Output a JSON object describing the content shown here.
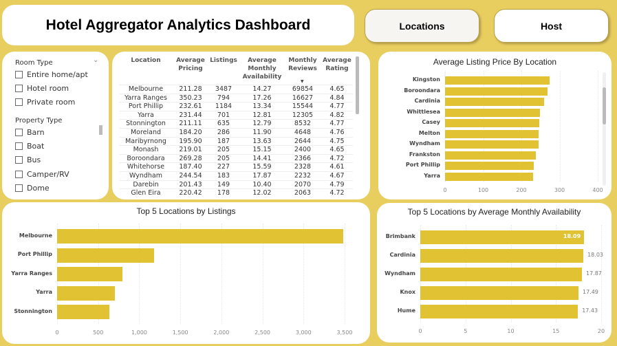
{
  "header": {
    "title": "Hotel Aggregator Analytics Dashboard",
    "nav": [
      "Locations",
      "Host"
    ]
  },
  "slicer": {
    "room_type_label": "Room Type",
    "room_types": [
      "Entire home/apt",
      "Hotel room",
      "Private room"
    ],
    "property_type_label": "Property Type",
    "property_types": [
      "Barn",
      "Boat",
      "Bus",
      "Camper/RV",
      "Dome"
    ]
  },
  "table": {
    "columns": [
      "Location",
      "Average Pricing",
      "Listings",
      "Average Monthly Availability",
      "Monthly Reviews",
      "Average Rating"
    ],
    "sort_column": "Monthly Reviews",
    "sort": "descending",
    "rows": [
      [
        "Melbourne",
        "211.28",
        "3487",
        "14.27",
        "69854",
        "4.65"
      ],
      [
        "Yarra Ranges",
        "350.23",
        "794",
        "17.26",
        "16627",
        "4.84"
      ],
      [
        "Port Phillip",
        "232.61",
        "1184",
        "13.34",
        "15544",
        "4.77"
      ],
      [
        "Yarra",
        "231.44",
        "701",
        "12.81",
        "12305",
        "4.82"
      ],
      [
        "Stonnington",
        "211.11",
        "635",
        "12.79",
        "8532",
        "4.77"
      ],
      [
        "Moreland",
        "184.20",
        "286",
        "11.90",
        "4648",
        "4.76"
      ],
      [
        "Maribyrnong",
        "195.90",
        "187",
        "13.63",
        "2644",
        "4.75"
      ],
      [
        "Monash",
        "219.01",
        "205",
        "15.15",
        "2400",
        "4.65"
      ],
      [
        "Boroondara",
        "269.28",
        "205",
        "14.41",
        "2366",
        "4.72"
      ],
      [
        "Whitehorse",
        "187.40",
        "227",
        "15.59",
        "2328",
        "4.61"
      ],
      [
        "Wyndham",
        "244.54",
        "183",
        "17.87",
        "2232",
        "4.67"
      ],
      [
        "Darebin",
        "201.43",
        "149",
        "10.40",
        "2070",
        "4.79"
      ],
      [
        "Glen Eira",
        "220.42",
        "178",
        "12.02",
        "2063",
        "4.72"
      ]
    ]
  },
  "colors": {
    "background": "#e8cd5f",
    "bar": "#e1c232"
  },
  "chart_data": [
    {
      "type": "bar",
      "orientation": "horizontal",
      "title": "Average Listing Price By Location",
      "categories": [
        "Kingston",
        "Boroondara",
        "Cardinia",
        "Whittlesea",
        "Casey",
        "Melton",
        "Wyndham",
        "Frankston",
        "Port Phillip",
        "Yarra"
      ],
      "values": [
        273,
        269.28,
        260,
        248,
        247,
        245,
        244.54,
        237,
        232.61,
        231.44
      ],
      "xlim": [
        0,
        400
      ],
      "ticks": [
        "0",
        "100",
        "200",
        "300",
        "400"
      ],
      "grid": true
    },
    {
      "type": "bar",
      "orientation": "horizontal",
      "title": "Top 5 Locations by Listings",
      "categories": [
        "Melbourne",
        "Port Phillip",
        "Yarra Ranges",
        "Yarra",
        "Stonnington"
      ],
      "values": [
        3487,
        1184,
        794,
        701,
        635
      ],
      "xlim": [
        0,
        3500
      ],
      "ticks": [
        "0",
        "500",
        "1,000",
        "1,500",
        "2,000",
        "2,500",
        "3,000",
        "3,500"
      ],
      "grid": true
    },
    {
      "type": "bar",
      "orientation": "horizontal",
      "title": "Top 5 Locations by Average Monthly Availability",
      "categories": [
        "Brimbank",
        "Cardinia",
        "Wyndham",
        "Knox",
        "Hume"
      ],
      "values": [
        18.09,
        18.03,
        17.87,
        17.49,
        17.43
      ],
      "data_labels": [
        "18.09",
        "18.03",
        "17.87",
        "17.49",
        "17.43"
      ],
      "xlim": [
        0,
        20
      ],
      "ticks": [
        "0",
        "5",
        "10",
        "15",
        "20"
      ],
      "grid": true
    }
  ]
}
